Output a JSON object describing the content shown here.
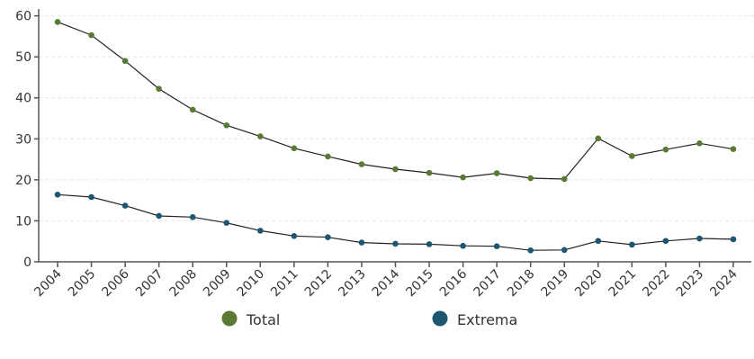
{
  "chart_data": {
    "type": "line",
    "categories": [
      "2004",
      "2005",
      "2006",
      "2007",
      "2008",
      "2009",
      "2010",
      "2011",
      "2012",
      "2013",
      "2014",
      "2015",
      "2016",
      "2017",
      "2018",
      "2019",
      "2020",
      "2021",
      "2022",
      "2023",
      "2024"
    ],
    "series": [
      {
        "name": "Total",
        "color": "#5a7a34",
        "values": [
          58.5,
          55.3,
          49.0,
          42.2,
          37.1,
          33.3,
          30.6,
          27.7,
          25.7,
          23.8,
          22.6,
          21.7,
          20.6,
          21.6,
          20.4,
          20.2,
          30.1,
          25.8,
          27.4,
          28.9,
          27.5
        ]
      },
      {
        "name": "Extrema",
        "color": "#1d5670",
        "values": [
          16.4,
          15.8,
          13.7,
          11.2,
          10.9,
          9.5,
          7.6,
          6.3,
          6.0,
          4.7,
          4.4,
          4.3,
          3.9,
          3.8,
          2.8,
          2.9,
          5.1,
          4.2,
          5.1,
          5.7,
          5.5
        ]
      }
    ],
    "yticks": [
      "0",
      "10",
      "20",
      "30",
      "40",
      "50",
      "60"
    ],
    "ylim": [
      0,
      62
    ],
    "grid": true,
    "legend_position": "bottom",
    "line_color": "#222222"
  }
}
